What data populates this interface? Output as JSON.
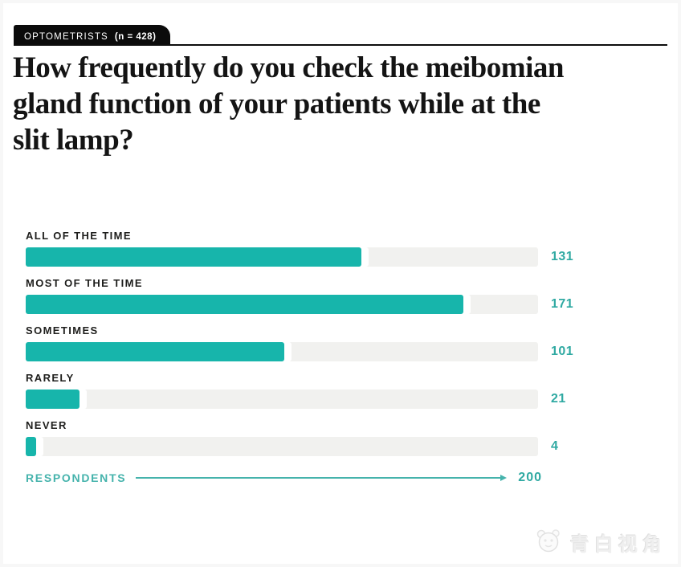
{
  "badge": {
    "label": "OPTOMETRISTS",
    "n": "(n = 428)"
  },
  "title": "How frequently do you check the meibomian gland function of your patients while at the slit lamp?",
  "title_lines": [
    "How frequently do you check the meibomian",
    "gland function of your patients while at the",
    "slit lamp?"
  ],
  "chart_data": {
    "type": "bar",
    "orientation": "horizontal",
    "categories": [
      "ALL OF THE TIME",
      "MOST OF THE TIME",
      "SOMETIMES",
      "RARELY",
      "NEVER"
    ],
    "values": [
      131,
      171,
      101,
      21,
      4
    ],
    "xlim": [
      0,
      200
    ],
    "axis_label": "RESPONDENTS",
    "axis_max_label": "200",
    "grid": false,
    "value_labels": true,
    "bar_color": "#17B5AB",
    "track_color": "#F1F1EF",
    "value_color": "#2FA9A2"
  },
  "watermark": {
    "icon": "panda-face-logo",
    "text": "青白视角"
  },
  "colors": {
    "badge_bg": "#0B0B0B",
    "title_text": "#141414",
    "label_text": "#1E1E1C",
    "teal": "#17B5AB",
    "track_gray": "#F1F1EF"
  }
}
